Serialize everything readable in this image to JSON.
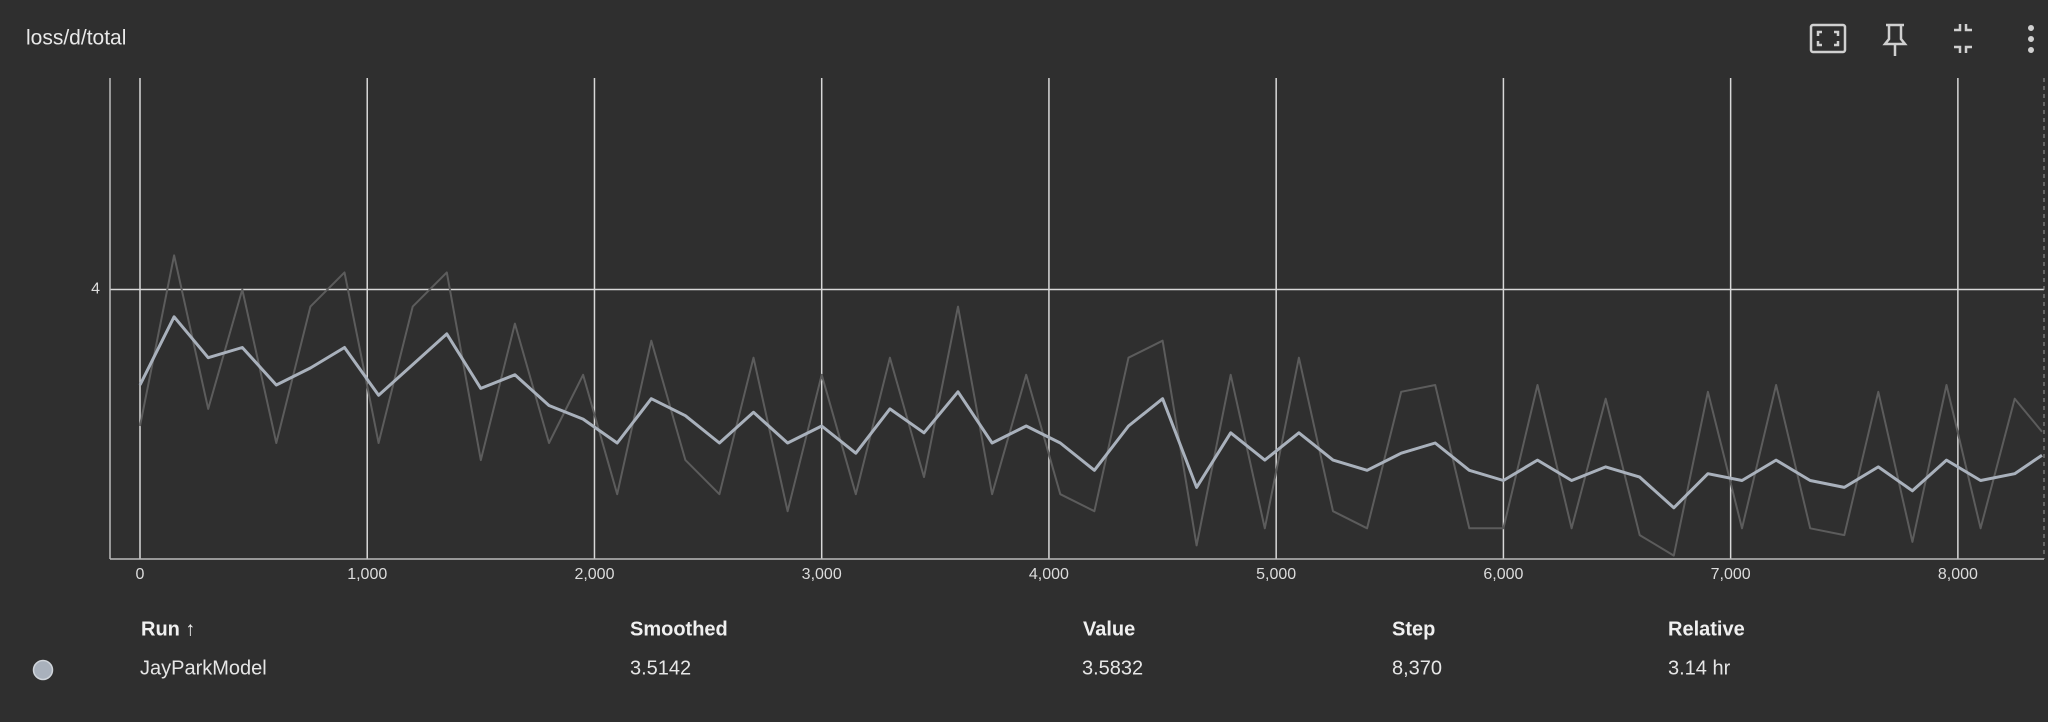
{
  "chart_data": {
    "type": "line",
    "title": "loss/d/total",
    "x": [
      0,
      150,
      300,
      450,
      600,
      750,
      900,
      1050,
      1200,
      1350,
      1500,
      1650,
      1800,
      1950,
      2100,
      2250,
      2400,
      2550,
      2700,
      2850,
      3000,
      3150,
      3300,
      3450,
      3600,
      3750,
      3900,
      4050,
      4200,
      4350,
      4500,
      4650,
      4800,
      4950,
      5100,
      5250,
      5400,
      5550,
      5700,
      5850,
      6000,
      6150,
      6300,
      6450,
      6600,
      6750,
      6900,
      7050,
      7200,
      7350,
      7500,
      7650,
      7800,
      7950,
      8100,
      8250,
      8370
    ],
    "series": [
      {
        "color": "#5c5c5c",
        "values": [
          3.6,
          4.1,
          3.65,
          4.0,
          3.55,
          3.95,
          4.05,
          3.55,
          3.95,
          4.05,
          3.5,
          3.9,
          3.55,
          3.75,
          3.4,
          3.85,
          3.5,
          3.4,
          3.8,
          3.35,
          3.75,
          3.4,
          3.8,
          3.45,
          3.95,
          3.4,
          3.75,
          3.4,
          3.35,
          3.8,
          3.85,
          3.25,
          3.75,
          3.3,
          3.8,
          3.35,
          3.3,
          3.7,
          3.72,
          3.3,
          3.3,
          3.72,
          3.3,
          3.68,
          3.28,
          3.22,
          3.7,
          3.3,
          3.72,
          3.3,
          3.28,
          3.7,
          3.26,
          3.72,
          3.3,
          3.68,
          3.5832
        ]
      },
      {
        "color": "#a9b1bc",
        "values": [
          3.72,
          3.92,
          3.8,
          3.83,
          3.72,
          3.77,
          3.83,
          3.69,
          3.78,
          3.87,
          3.71,
          3.75,
          3.66,
          3.62,
          3.55,
          3.68,
          3.63,
          3.55,
          3.64,
          3.55,
          3.6,
          3.52,
          3.65,
          3.58,
          3.7,
          3.55,
          3.6,
          3.55,
          3.47,
          3.6,
          3.68,
          3.42,
          3.58,
          3.5,
          3.58,
          3.5,
          3.47,
          3.52,
          3.55,
          3.47,
          3.44,
          3.5,
          3.44,
          3.48,
          3.45,
          3.36,
          3.46,
          3.44,
          3.5,
          3.44,
          3.42,
          3.48,
          3.41,
          3.5,
          3.44,
          3.46,
          3.5142
        ]
      }
    ],
    "xlim": [
      -132,
      8379
    ],
    "xticks": [
      0,
      {
        "value": 1000,
        "label": "1,000"
      },
      {
        "value": 2000,
        "label": "2,000"
      },
      {
        "value": 3000,
        "label": "3,000"
      },
      {
        "value": 4000,
        "label": "4,000"
      },
      {
        "value": 5000,
        "label": "5,000"
      },
      {
        "value": 6000,
        "label": "6,000"
      },
      {
        "value": 7000,
        "label": "7,000"
      },
      {
        "value": 8000,
        "label": "8,000"
      }
    ],
    "ylim": [
      3.21,
      4.62
    ],
    "yticks": [
      4
    ],
    "grid": true
  },
  "table": {
    "headers": [
      "Run ↑",
      "Smoothed",
      "Value",
      "Step",
      "Relative"
    ],
    "rows": [
      [
        "JayParkModel",
        "3.5142",
        "3.5832",
        "8,370",
        "3.14 hr"
      ]
    ]
  }
}
